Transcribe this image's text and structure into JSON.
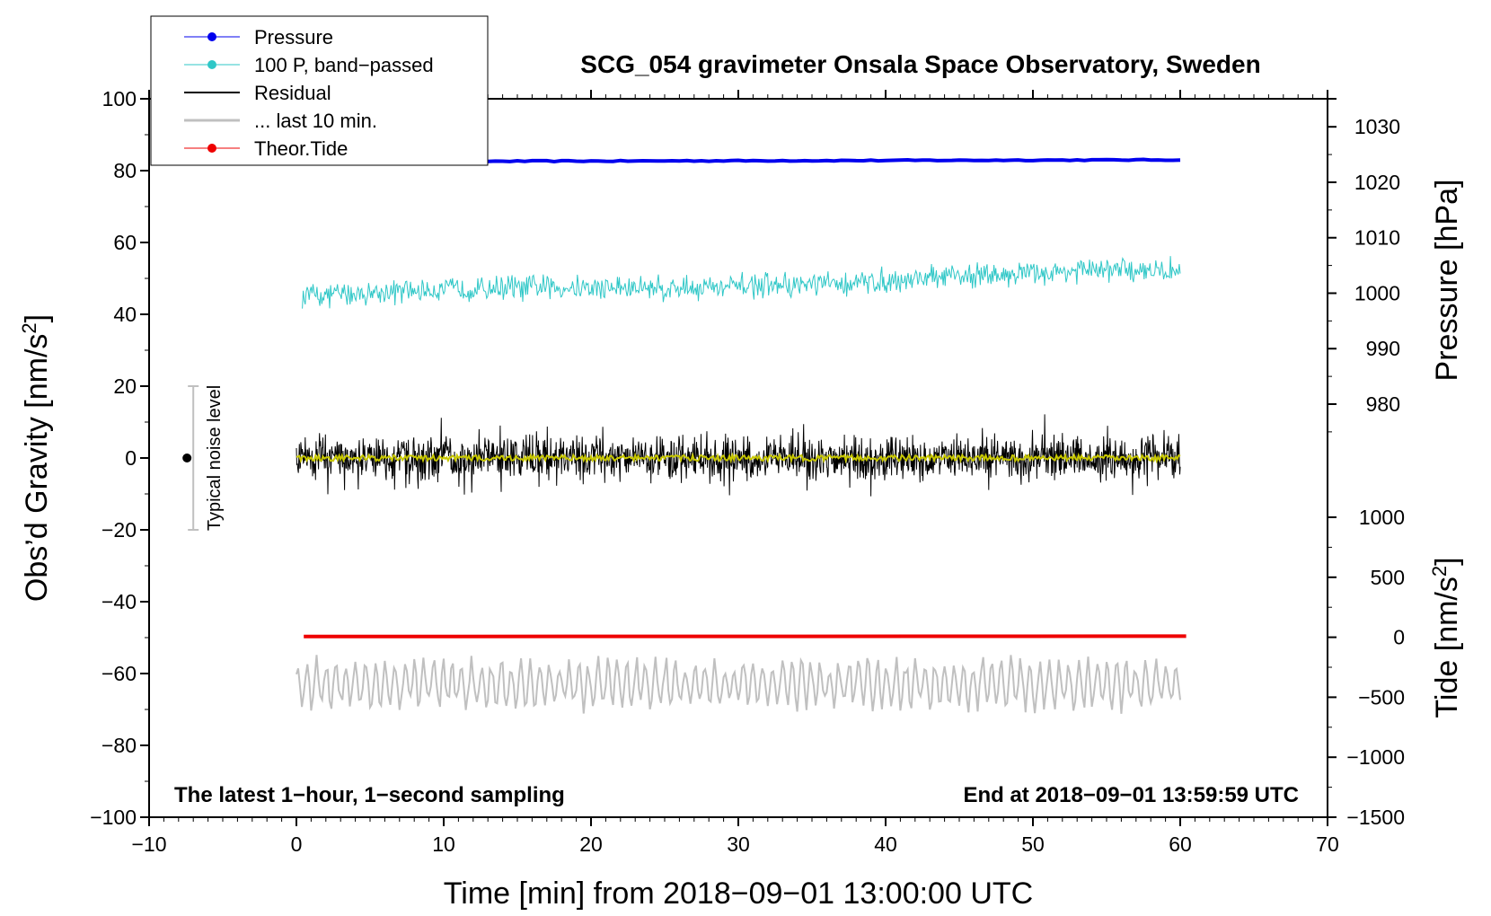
{
  "chart_data": {
    "type": "line",
    "title": "SCG_054 gravimeter Onsala Space Observatory, Sweden",
    "xlabel": "Time [min] from 2018−09−01 13:00:00 UTC",
    "ylabel_left_main": "Obs’d Gravity [nm/s",
    "ylabel_left_sup": "2",
    "ylabel_left_end": "]",
    "ylabel_right_pressure": "Pressure [hPa]",
    "ylabel_right_tide_main": "Tide [nm/s",
    "ylabel_right_tide_sup": "2",
    "ylabel_right_tide_end": "]",
    "xlim": [
      -10,
      70
    ],
    "ylim": [
      -100,
      100
    ],
    "x_ticks": [
      {
        "v": -10,
        "label": "−10"
      },
      {
        "v": 0,
        "label": "0"
      },
      {
        "v": 10,
        "label": "10"
      },
      {
        "v": 20,
        "label": "20"
      },
      {
        "v": 30,
        "label": "30"
      },
      {
        "v": 40,
        "label": "40"
      },
      {
        "v": 50,
        "label": "50"
      },
      {
        "v": 60,
        "label": "60"
      },
      {
        "v": 70,
        "label": "70"
      }
    ],
    "y_ticks": [
      {
        "v": 100,
        "label": "100"
      },
      {
        "v": 80,
        "label": "80"
      },
      {
        "v": 60,
        "label": "60"
      },
      {
        "v": 40,
        "label": "40"
      },
      {
        "v": 20,
        "label": "20"
      },
      {
        "v": 0,
        "label": "0"
      },
      {
        "v": -20,
        "label": "−20"
      },
      {
        "v": -40,
        "label": "−40"
      },
      {
        "v": -60,
        "label": "−60"
      },
      {
        "v": -80,
        "label": "−80"
      },
      {
        "v": -100,
        "label": "−100"
      }
    ],
    "pressure_axis": {
      "ticks": [
        {
          "v": 1030,
          "label": "1030"
        },
        {
          "v": 1020,
          "label": "1020"
        },
        {
          "v": 1010,
          "label": "1010"
        },
        {
          "v": 1000,
          "label": "1000"
        },
        {
          "v": 990,
          "label": "990"
        },
        {
          "v": 980,
          "label": "980"
        }
      ],
      "map_hpa": [
        1030,
        980
      ],
      "map_gravity": [
        92.2,
        15.0
      ]
    },
    "tide_axis": {
      "ticks": [
        {
          "v": 1000,
          "label": "1000"
        },
        {
          "v": 500,
          "label": "500"
        },
        {
          "v": 0,
          "label": "0"
        },
        {
          "v": -500,
          "label": "−500"
        },
        {
          "v": -1000,
          "label": "−1000"
        },
        {
          "v": -1500,
          "label": "−1500"
        }
      ],
      "map_tide": [
        1000,
        -1500
      ],
      "map_gravity": [
        -16.5,
        -100
      ]
    },
    "series": [
      {
        "name": "Pressure",
        "color": "#0000ee",
        "x_range": [
          0,
          60
        ],
        "level_start": 82.5,
        "level_end": 83.0,
        "style": "thick"
      },
      {
        "name": "100 P, band−passed",
        "color": "#2fc7c7",
        "x_range": [
          0.4,
          60
        ],
        "level_start": 45,
        "level_end": 52,
        "amplitude": 3.5,
        "style": "noisy"
      },
      {
        "name": "Residual",
        "color": "#000000",
        "x_range": [
          0,
          60
        ],
        "level_start": 0,
        "level_end": 0,
        "amplitude": 7,
        "style": "noisy"
      },
      {
        "name": "... last 10 min.",
        "color": "#c0c0c0",
        "x_range": [
          0,
          60
        ],
        "level_start": -63,
        "level_end": -63,
        "amplitude": 6,
        "style": "oscillating"
      },
      {
        "name": "Theor.Tide",
        "color": "#ee0000",
        "x_range": [
          0.5,
          60.4
        ],
        "level_start": -49.7,
        "level_end": -49.6,
        "style": "thick"
      }
    ],
    "smoothed_residual_color": "#c8c800",
    "noise_bar": {
      "x": -7,
      "center": 0,
      "low": -20,
      "high": 20,
      "label": "Typical noise level"
    },
    "annotations": {
      "bottom_left": "The latest 1−hour, 1−second sampling",
      "bottom_right": "End at 2018−09−01 13:59:59 UTC"
    },
    "legend_position": "top-left"
  }
}
